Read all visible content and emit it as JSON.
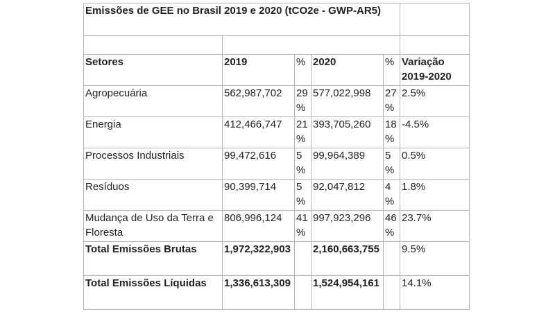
{
  "title": "Emissões de GEE no Brasil 2019 e 2020 (tCO2e - GWP-AR5)",
  "headers": {
    "sector": "Setores",
    "y2019": "2019",
    "pct2019": "%",
    "y2020": "2020",
    "pct2020": "%",
    "variation": "Variação 2019-2020"
  },
  "rows": [
    {
      "sector": "Agropecuária",
      "v2019": "562,987,702",
      "p2019": "29 %",
      "v2020": "577,022,998",
      "p2020": "27 %",
      "var": "2.5%"
    },
    {
      "sector": "Energia",
      "v2019": "412,466,747",
      "p2019": "21 %",
      "v2020": "393,705,260",
      "p2020": "18 %",
      "var": "-4.5%"
    },
    {
      "sector": "Processos Industriais",
      "v2019": "99,472,616",
      "p2019": "5%",
      "v2020": "99,964,389",
      "p2020": "5%",
      "var": "0.5%"
    },
    {
      "sector": "Resíduos",
      "v2019": "90,399,714",
      "p2019": "5%",
      "v2020": "92,047,812",
      "p2020": "4%",
      "var": "1.8%"
    },
    {
      "sector": "Mudança de Uso da Terra e Floresta",
      "v2019": "806,996,124",
      "p2019": "41 %",
      "v2020": "997,923,296",
      "p2020": "46 %",
      "var": "23.7%"
    }
  ],
  "totals": [
    {
      "label": "Total Emissões Brutas",
      "v2019": "1,972,322,903",
      "v2020": "2,160,663,755",
      "var": "9.5%"
    },
    {
      "label": "Total Emissões Líquidas",
      "v2019": "1,336,613,309",
      "v2020": "1,524,954,161",
      "var": "14.1%"
    }
  ]
}
